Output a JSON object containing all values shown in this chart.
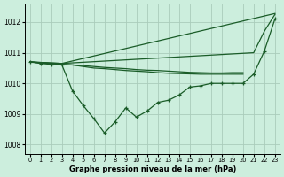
{
  "background_color": "#cceedd",
  "grid_color": "#aaccbb",
  "line_color": "#1a5c28",
  "title": "Graphe pression niveau de la mer (hPa)",
  "xlim": [
    -0.5,
    23.5
  ],
  "ylim": [
    1007.7,
    1012.6
  ],
  "yticks": [
    1008,
    1009,
    1010,
    1011,
    1012
  ],
  "xticks": [
    0,
    1,
    2,
    3,
    4,
    5,
    6,
    7,
    8,
    9,
    10,
    11,
    12,
    13,
    14,
    15,
    16,
    17,
    18,
    19,
    20,
    21,
    22,
    23
  ],
  "series": [
    {
      "x": [
        0,
        3,
        23
      ],
      "y": [
        1010.7,
        1010.65,
        1012.28
      ],
      "marker": false,
      "lw": 0.9
    },
    {
      "x": [
        0,
        3,
        21,
        22,
        23
      ],
      "y": [
        1010.7,
        1010.65,
        1011.0,
        1011.7,
        1012.25
      ],
      "marker": false,
      "lw": 0.9
    },
    {
      "x": [
        0,
        3,
        4,
        5,
        6,
        7,
        8,
        9,
        10,
        11,
        12,
        13,
        14,
        15,
        16,
        17,
        18,
        19,
        20
      ],
      "y": [
        1010.7,
        1010.62,
        1010.6,
        1010.58,
        1010.55,
        1010.52,
        1010.5,
        1010.48,
        1010.45,
        1010.43,
        1010.42,
        1010.4,
        1010.38,
        1010.36,
        1010.35,
        1010.34,
        1010.34,
        1010.35,
        1010.35
      ],
      "marker": false,
      "lw": 0.9
    },
    {
      "x": [
        0,
        3,
        4,
        5,
        6,
        7,
        8,
        9,
        10,
        11,
        12,
        13,
        14,
        15,
        16,
        17,
        18,
        19,
        20
      ],
      "y": [
        1010.7,
        1010.62,
        1010.6,
        1010.55,
        1010.5,
        1010.48,
        1010.45,
        1010.42,
        1010.4,
        1010.38,
        1010.35,
        1010.33,
        1010.32,
        1010.31,
        1010.3,
        1010.3,
        1010.3,
        1010.3,
        1010.3
      ],
      "marker": false,
      "lw": 0.9
    },
    {
      "x": [
        0,
        1,
        2,
        3,
        4,
        5,
        6,
        7,
        8,
        9,
        10,
        11,
        12,
        13,
        14,
        15,
        16,
        17,
        18,
        19,
        20,
        21,
        22,
        23
      ],
      "y": [
        1010.7,
        1010.65,
        1010.62,
        1010.6,
        1009.75,
        1009.28,
        1008.85,
        1008.38,
        1008.75,
        1009.2,
        1008.9,
        1009.1,
        1009.38,
        1009.45,
        1009.62,
        1009.88,
        1009.92,
        1010.0,
        1010.0,
        1010.0,
        1010.0,
        1010.3,
        1011.05,
        1012.1
      ],
      "marker": true,
      "lw": 0.9
    }
  ]
}
